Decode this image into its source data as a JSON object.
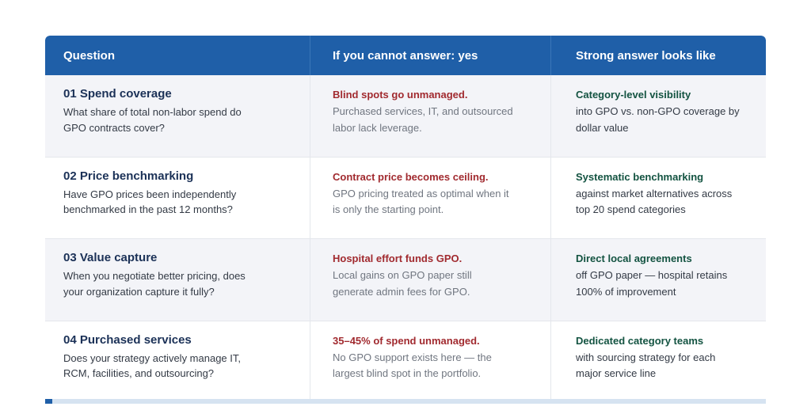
{
  "header": {
    "col1": "Question",
    "col2": "If you cannot answer: yes",
    "col3": "Strong answer looks like"
  },
  "rows": [
    {
      "question_title": "01 Spend coverage",
      "question_text": "What share of total non-labor spend do GPO contracts cover?",
      "risk_title": "Blind spots go unmanaged.",
      "risk_text": "Purchased services, IT, and outsourced labor lack leverage.",
      "strong_title": "Category-level visibility",
      "strong_text": "into GPO vs. non-GPO coverage by dollar value"
    },
    {
      "question_title": "02 Price benchmarking",
      "question_text": "Have GPO prices been independently benchmarked in the past 12 months?",
      "risk_title": "Contract price becomes ceiling.",
      "risk_text": "GPO pricing treated as optimal when it is only the starting point.",
      "strong_title": "Systematic benchmarking",
      "strong_text": "against market alternatives across top 20 spend categories"
    },
    {
      "question_title": "03 Value capture",
      "question_text": "When you negotiate better pricing, does your organization capture it fully?",
      "risk_title": "Hospital effort funds GPO.",
      "risk_text": "Local gains on GPO paper still generate admin fees for GPO.",
      "strong_title": "Direct local agreements",
      "strong_text": "off GPO paper — hospital retains 100% of improvement"
    },
    {
      "question_title": "04 Purchased services",
      "question_text": "Does your strategy actively manage IT, RCM, facilities, and outsourcing?",
      "risk_title": "35–45% of spend unmanaged.",
      "risk_text": "No GPO support exists here — the largest blind spot in the portfolio.",
      "strong_title": "Dedicated category teams",
      "strong_text": "with sourcing strategy for each major service line"
    }
  ],
  "colors": {
    "header_bg": "#1f5fa8",
    "question_title": "#1b3157",
    "risk_title": "#a12a2f",
    "strong_title": "#135341",
    "row_shade": "#f3f4f8"
  }
}
